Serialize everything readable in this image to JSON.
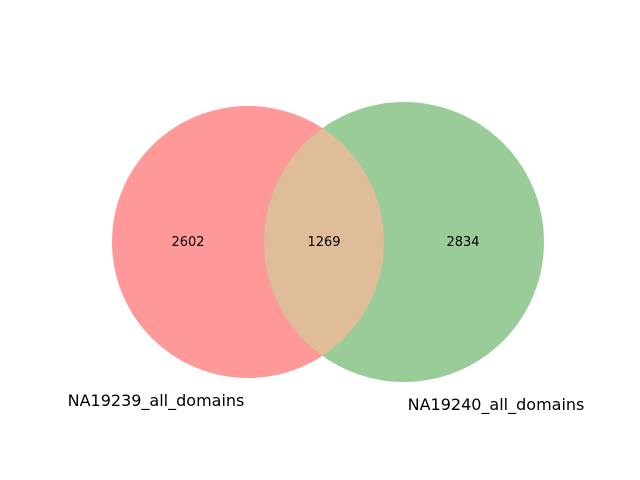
{
  "venn": {
    "sets": [
      {
        "name": "NA19239_all_domains",
        "color": "#ff9999"
      },
      {
        "name": "NA19240_all_domains",
        "color": "#99cc99"
      }
    ],
    "overlap_color": "#dfbd99",
    "counts": {
      "left_only": "2602",
      "both": "1269",
      "right_only": "2834"
    }
  }
}
